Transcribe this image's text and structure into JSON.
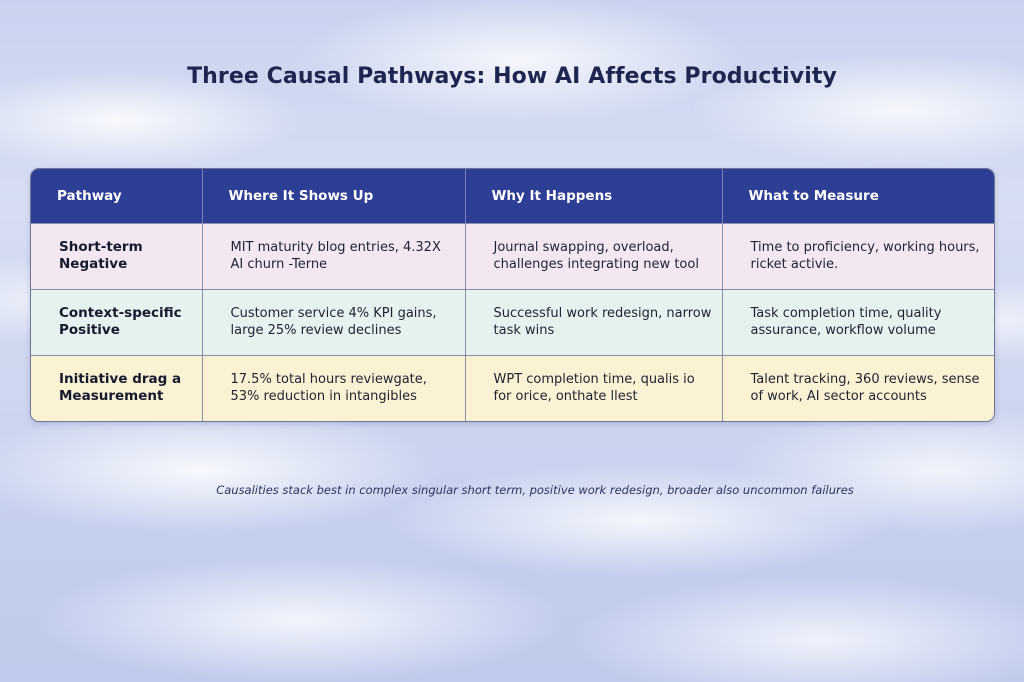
{
  "title": "Three Causal Pathways: How AI Affects Productivity",
  "colors": {
    "header_bg": "#2f3e95",
    "row_negative": "#f3e8f2",
    "row_positive": "#e6f2ef",
    "row_measurement": "#fbf1d3"
  },
  "table": {
    "headers": [
      "Pathway",
      "Where It Shows Up",
      "Why It Happens",
      "What to Measure"
    ],
    "rows": [
      {
        "pathway": "Short-term Negative",
        "where": "MIT maturity blog entries, 4.32X AI churn -Terne",
        "why": "Journal swapping, overload, challenges integrating new tool",
        "measure": "Time to proficiency, working hours, ricket activie."
      },
      {
        "pathway": "Context-specific Positive",
        "where": "Customer service 4% KPI gains, large 25% review declines",
        "why": "Successful work redesign, narrow task wins",
        "measure": "Task completion time, quality assurance, workflow volume"
      },
      {
        "pathway": "Initiative drag a Measurement",
        "where": "17.5% total hours reviewgate, 53% reduction in intangibles",
        "why": "WPT completion time, qualis io for orice, onthate llest",
        "measure": "Talent tracking, 360 reviews, sense of work, AI sector accounts"
      }
    ]
  },
  "footnote": "Causalities stack best in complex singular short term, positive work redesign, broader also uncommon failures"
}
